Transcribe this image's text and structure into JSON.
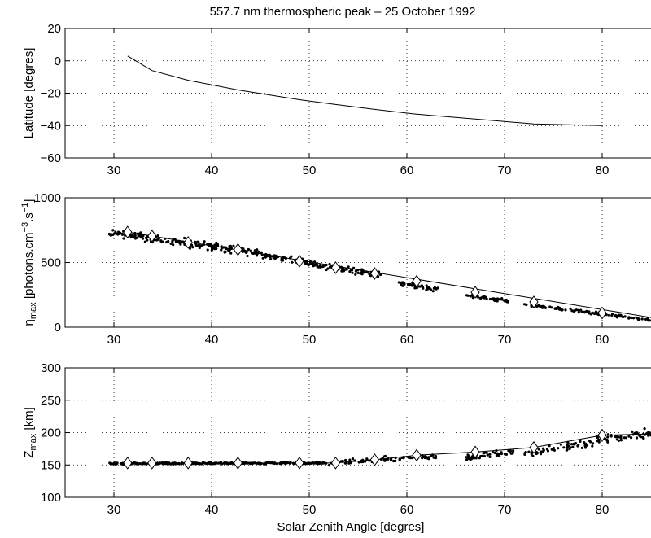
{
  "figure": {
    "title": "557.7 nm thermospheric peak – 25 October 1992",
    "xlabel": "Solar Zenith Angle [degres]"
  },
  "chart_data": [
    {
      "id": "latitude",
      "type": "line",
      "ylabel": "Latitude [degres]",
      "xlim": [
        25,
        85
      ],
      "ylim": [
        -60,
        20
      ],
      "xticks": [
        30,
        40,
        50,
        60,
        70,
        80
      ],
      "yticks": [
        20,
        0,
        -20,
        -40,
        -60
      ],
      "grid": true,
      "line": {
        "x": [
          31.4,
          33.9,
          37.6,
          42.7,
          49.0,
          52.7,
          56.7,
          61.0,
          67.0,
          73.0,
          80.0
        ],
        "y": [
          3,
          -6,
          -12,
          -18,
          -24,
          -27,
          -30,
          -33,
          -36,
          -39,
          -40
        ]
      }
    },
    {
      "id": "eta_max",
      "type": "scatter",
      "ylabel_main": "η",
      "ylabel_sub": "max",
      "ylabel_rest": " [photons.cm",
      "ylabel_sup1": "−3",
      "ylabel_mid": ".s",
      "ylabel_sup2": "−1",
      "ylabel_end": "]",
      "xlim": [
        25,
        85
      ],
      "ylim": [
        0,
        1000
      ],
      "xticks": [
        30,
        40,
        50,
        60,
        70,
        80
      ],
      "yticks": [
        1000,
        500,
        0
      ],
      "grid": true,
      "model_line": {
        "x": [
          31.4,
          85
        ],
        "y": [
          735,
          75
        ]
      },
      "diamonds": {
        "x": [
          31.4,
          33.9,
          37.6,
          42.7,
          49.0,
          52.7,
          56.7,
          61.0,
          67.0,
          73.0,
          80.0
        ],
        "y": [
          735,
          705,
          655,
          600,
          510,
          460,
          415,
          355,
          270,
          195,
          110
        ]
      },
      "scatter_segments": [
        {
          "x_from": 29.5,
          "x_to": 45.0,
          "trend": [
            735,
            570
          ],
          "spread": 45,
          "count": 210
        },
        {
          "x_from": 45.0,
          "x_to": 57.5,
          "trend": [
            560,
            400
          ],
          "spread": 35,
          "count": 140
        },
        {
          "x_from": 59.0,
          "x_to": 63.2,
          "trend": [
            345,
            290
          ],
          "spread": 25,
          "count": 40
        },
        {
          "x_from": 66.0,
          "x_to": 70.5,
          "trend": [
            250,
            200
          ],
          "spread": 18,
          "count": 45
        },
        {
          "x_from": 72.0,
          "x_to": 85.0,
          "trend": [
            175,
            55
          ],
          "spread": 15,
          "count": 110
        }
      ]
    },
    {
      "id": "z_max",
      "type": "scatter",
      "ylabel_main": "Z",
      "ylabel_sub": "max",
      "ylabel_rest": " [km]",
      "xlim": [
        25,
        85
      ],
      "ylim": [
        100,
        300
      ],
      "xticks": [
        30,
        40,
        50,
        60,
        70,
        80
      ],
      "yticks": [
        300,
        250,
        200,
        150,
        100
      ],
      "grid": true,
      "model_line": {
        "x": [
          31.4,
          33.9,
          37.6,
          42.7,
          49.0,
          52.7,
          56.7,
          61.0,
          67.0,
          73.0,
          80.0,
          85.0
        ],
        "y": [
          153,
          153,
          153,
          153,
          153,
          153,
          158,
          165,
          170,
          177,
          196,
          198
        ]
      },
      "diamonds": {
        "x": [
          31.4,
          33.9,
          37.6,
          42.7,
          49.0,
          52.7,
          56.7,
          61.0,
          67.0,
          73.0,
          80.0
        ],
        "y": [
          153,
          153,
          153,
          153,
          153,
          153,
          158,
          165,
          170,
          177,
          196
        ]
      },
      "scatter_segments": [
        {
          "x_from": 29.5,
          "x_to": 52.0,
          "trend": [
            152,
            153
          ],
          "spread": 2,
          "count": 300
        },
        {
          "x_from": 52.0,
          "x_to": 63.0,
          "trend": [
            153,
            163
          ],
          "spread": 6,
          "count": 90
        },
        {
          "x_from": 66.0,
          "x_to": 71.0,
          "trend": [
            162,
            170
          ],
          "spread": 7,
          "count": 50
        },
        {
          "x_from": 72.0,
          "x_to": 79.5,
          "trend": [
            168,
            185
          ],
          "spread": 9,
          "count": 60
        },
        {
          "x_from": 79.5,
          "x_to": 85.0,
          "trend": [
            190,
            200
          ],
          "spread": 12,
          "count": 55
        }
      ]
    }
  ]
}
